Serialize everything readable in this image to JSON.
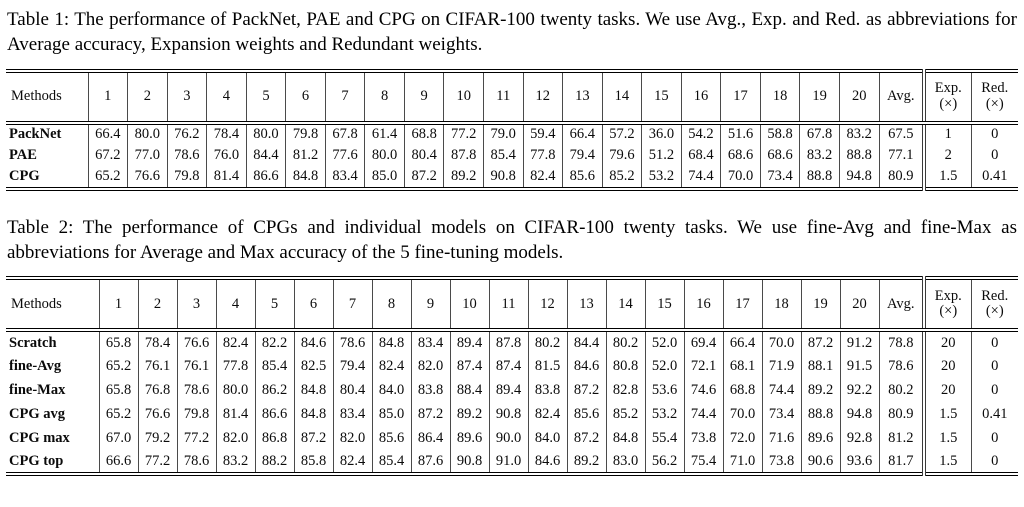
{
  "page": {
    "background": "#ffffff",
    "text_color": "#000000",
    "rule_color": "#000000"
  },
  "table1": {
    "caption": "Table 1: The performance of PackNet, PAE and CPG on CIFAR-100 twenty tasks. We use Avg., Exp. and Red. as abbreviations for Average accuracy, Expansion weights and Redundant weights.",
    "columns": {
      "method": "Methods",
      "tasks": [
        "1",
        "2",
        "3",
        "4",
        "5",
        "6",
        "7",
        "8",
        "9",
        "10",
        "11",
        "12",
        "13",
        "14",
        "15",
        "16",
        "17",
        "18",
        "19",
        "20"
      ],
      "avg": "Avg.",
      "exp": {
        "line1": "Exp.",
        "line2": "(×)"
      },
      "red": {
        "line1": "Red.",
        "line2": "(×)"
      }
    },
    "rows": [
      {
        "method": "PackNet",
        "values": [
          "66.4",
          "80.0",
          "76.2",
          "78.4",
          "80.0",
          "79.8",
          "67.8",
          "61.4",
          "68.8",
          "77.2",
          "79.0",
          "59.4",
          "66.4",
          "57.2",
          "36.0",
          "54.2",
          "51.6",
          "58.8",
          "67.8",
          "83.2"
        ],
        "avg": "67.5",
        "exp": "1",
        "red": "0"
      },
      {
        "method": "PAE",
        "values": [
          "67.2",
          "77.0",
          "78.6",
          "76.0",
          "84.4",
          "81.2",
          "77.6",
          "80.0",
          "80.4",
          "87.8",
          "85.4",
          "77.8",
          "79.4",
          "79.6",
          "51.2",
          "68.4",
          "68.6",
          "68.6",
          "83.2",
          "88.8"
        ],
        "avg": "77.1",
        "exp": "2",
        "red": "0"
      },
      {
        "method": "CPG",
        "values": [
          "65.2",
          "76.6",
          "79.8",
          "81.4",
          "86.6",
          "84.8",
          "83.4",
          "85.0",
          "87.2",
          "89.2",
          "90.8",
          "82.4",
          "85.6",
          "85.2",
          "53.2",
          "74.4",
          "70.0",
          "73.4",
          "88.8",
          "94.8"
        ],
        "avg": "80.9",
        "exp": "1.5",
        "red": "0.41"
      }
    ]
  },
  "table2": {
    "caption": "Table 2: The performance of CPGs and individual models on CIFAR-100 twenty tasks. We use fine-Avg and fine-Max as abbreviations for Average and Max accuracy of the 5 fine-tuning models.",
    "columns": {
      "method": "Methods",
      "tasks": [
        "1",
        "2",
        "3",
        "4",
        "5",
        "6",
        "7",
        "8",
        "9",
        "10",
        "11",
        "12",
        "13",
        "14",
        "15",
        "16",
        "17",
        "18",
        "19",
        "20"
      ],
      "avg": "Avg.",
      "exp": {
        "line1": "Exp.",
        "line2": "(×)"
      },
      "red": {
        "line1": "Red.",
        "line2": "(×)"
      }
    },
    "rows": [
      {
        "method": "Scratch",
        "values": [
          "65.8",
          "78.4",
          "76.6",
          "82.4",
          "82.2",
          "84.6",
          "78.6",
          "84.8",
          "83.4",
          "89.4",
          "87.8",
          "80.2",
          "84.4",
          "80.2",
          "52.0",
          "69.4",
          "66.4",
          "70.0",
          "87.2",
          "91.2"
        ],
        "avg": "78.8",
        "exp": "20",
        "red": "0"
      },
      {
        "method": "fine-Avg",
        "values": [
          "65.2",
          "76.1",
          "76.1",
          "77.8",
          "85.4",
          "82.5",
          "79.4",
          "82.4",
          "82.0",
          "87.4",
          "87.4",
          "81.5",
          "84.6",
          "80.8",
          "52.0",
          "72.1",
          "68.1",
          "71.9",
          "88.1",
          "91.5"
        ],
        "avg": "78.6",
        "exp": "20",
        "red": "0"
      },
      {
        "method": "fine-Max",
        "values": [
          "65.8",
          "76.8",
          "78.6",
          "80.0",
          "86.2",
          "84.8",
          "80.4",
          "84.0",
          "83.8",
          "88.4",
          "89.4",
          "83.8",
          "87.2",
          "82.8",
          "53.6",
          "74.6",
          "68.8",
          "74.4",
          "89.2",
          "92.2"
        ],
        "avg": "80.2",
        "exp": "20",
        "red": "0"
      },
      {
        "method": "CPG avg",
        "values": [
          "65.2",
          "76.6",
          "79.8",
          "81.4",
          "86.6",
          "84.8",
          "83.4",
          "85.0",
          "87.2",
          "89.2",
          "90.8",
          "82.4",
          "85.6",
          "85.2",
          "53.2",
          "74.4",
          "70.0",
          "73.4",
          "88.8",
          "94.8"
        ],
        "avg": "80.9",
        "exp": "1.5",
        "red": "0.41"
      },
      {
        "method": "CPG max",
        "values": [
          "67.0",
          "79.2",
          "77.2",
          "82.0",
          "86.8",
          "87.2",
          "82.0",
          "85.6",
          "86.4",
          "89.6",
          "90.0",
          "84.0",
          "87.2",
          "84.8",
          "55.4",
          "73.8",
          "72.0",
          "71.6",
          "89.6",
          "92.8"
        ],
        "avg": "81.2",
        "exp": "1.5",
        "red": "0"
      },
      {
        "method": "CPG top",
        "values": [
          "66.6",
          "77.2",
          "78.6",
          "83.2",
          "88.2",
          "85.8",
          "82.4",
          "85.4",
          "87.6",
          "90.8",
          "91.0",
          "84.6",
          "89.2",
          "83.0",
          "56.2",
          "75.4",
          "71.0",
          "73.8",
          "90.6",
          "93.6"
        ],
        "avg": "81.7",
        "exp": "1.5",
        "red": "0"
      }
    ]
  }
}
